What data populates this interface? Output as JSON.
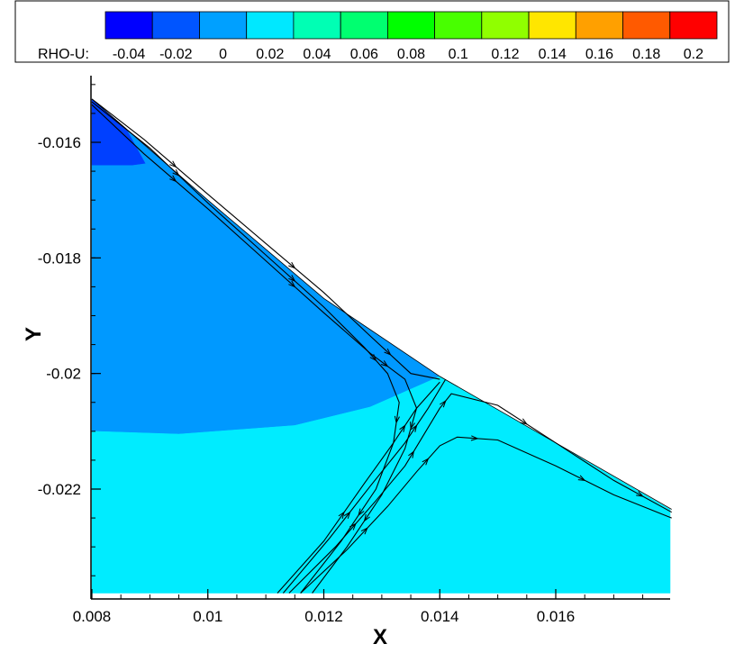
{
  "chart_data": {
    "type": "contour",
    "variable": "RHO-U",
    "xlabel": "X",
    "ylabel": "Y",
    "xlim": [
      0.008,
      0.018
    ],
    "ylim": [
      -0.0238,
      -0.0149
    ],
    "x_ticks": [
      "0.008",
      "0.01",
      "0.012",
      "0.014",
      "0.016"
    ],
    "x_tick_values": [
      0.008,
      0.01,
      0.012,
      0.014,
      0.016
    ],
    "y_ticks": [
      "-0.016",
      "-0.018",
      "-0.02",
      "-0.022"
    ],
    "y_tick_values": [
      -0.016,
      -0.018,
      -0.02,
      -0.022
    ],
    "legend": {
      "label": "RHO-U:",
      "levels": [
        "-0.04",
        "-0.02",
        "0",
        "0.02",
        "0.04",
        "0.06",
        "0.08",
        "0.1",
        "0.12",
        "0.14",
        "0.16",
        "0.18",
        "0.2"
      ],
      "colors": [
        "#0000ff",
        "#0055ff",
        "#00a0ff",
        "#00e8ff",
        "#00ffb4",
        "#00ff70",
        "#00ff00",
        "#48ff00",
        "#90ff00",
        "#ffe600",
        "#ffa000",
        "#ff5a00",
        "#ff0000"
      ]
    },
    "upper_boundary": [
      [
        0.008,
        -0.01525
      ],
      [
        0.01,
        -0.017
      ],
      [
        0.012,
        -0.0187
      ],
      [
        0.014,
        -0.02005
      ],
      [
        0.018,
        -0.02235
      ]
    ],
    "regions": [
      {
        "color": "#0040ff",
        "polygon": [
          [
            0.008,
            -0.01525
          ],
          [
            0.0086,
            -0.01577
          ],
          [
            0.00893,
            -0.01637
          ],
          [
            0.0087,
            -0.0164
          ],
          [
            0.008,
            -0.0164
          ]
        ]
      },
      {
        "color": "#0099ff",
        "polygon": [
          [
            0.0086,
            -0.01577
          ],
          [
            0.01,
            -0.017
          ],
          [
            0.012,
            -0.0187
          ],
          [
            0.014,
            -0.02005
          ],
          [
            0.0128,
            -0.02058
          ],
          [
            0.0115,
            -0.0209
          ],
          [
            0.0095,
            -0.02105
          ],
          [
            0.008,
            -0.021
          ],
          [
            0.008,
            -0.0164
          ],
          [
            0.0087,
            -0.0164
          ],
          [
            0.00893,
            -0.01637
          ]
        ]
      },
      {
        "color": "#00ecff",
        "polygon": [
          [
            0.008,
            -0.021
          ],
          [
            0.0095,
            -0.02105
          ],
          [
            0.0115,
            -0.0209
          ],
          [
            0.0128,
            -0.02058
          ],
          [
            0.014,
            -0.02005
          ],
          [
            0.018,
            -0.02235
          ],
          [
            0.018,
            -0.0238
          ],
          [
            0.008,
            -0.0238
          ]
        ]
      }
    ],
    "streamlines": [
      [
        [
          0.008,
          -0.01525
        ],
        [
          0.0089,
          -0.01595
        ],
        [
          0.01,
          -0.0169
        ],
        [
          0.011,
          -0.01775
        ],
        [
          0.012,
          -0.0186
        ],
        [
          0.0128,
          -0.01935
        ],
        [
          0.0135,
          -0.02
        ],
        [
          0.014,
          -0.0201
        ]
      ],
      [
        [
          0.008,
          -0.0153
        ],
        [
          0.009,
          -0.0161
        ],
        [
          0.01,
          -0.01705
        ],
        [
          0.011,
          -0.01795
        ],
        [
          0.012,
          -0.01885
        ],
        [
          0.0127,
          -0.01955
        ],
        [
          0.0131,
          -0.02
        ],
        [
          0.0133,
          -0.0205
        ],
        [
          0.0132,
          -0.0212
        ],
        [
          0.0129,
          -0.022
        ],
        [
          0.0123,
          -0.0229
        ],
        [
          0.0116,
          -0.0238
        ]
      ],
      [
        [
          0.008,
          -0.01535
        ],
        [
          0.0089,
          -0.0162
        ],
        [
          0.01,
          -0.01715
        ],
        [
          0.011,
          -0.01805
        ],
        [
          0.012,
          -0.01895
        ],
        [
          0.0128,
          -0.01965
        ],
        [
          0.0134,
          -0.0201
        ],
        [
          0.0136,
          -0.0206
        ],
        [
          0.0134,
          -0.0213
        ],
        [
          0.013,
          -0.0221
        ],
        [
          0.0124,
          -0.023
        ],
        [
          0.0118,
          -0.0238
        ]
      ],
      [
        [
          0.0112,
          -0.0238
        ],
        [
          0.012,
          -0.0229
        ],
        [
          0.0127,
          -0.0219
        ],
        [
          0.0132,
          -0.0212
        ],
        [
          0.0136,
          -0.0206
        ],
        [
          0.014,
          -0.02015
        ]
      ],
      [
        [
          0.0113,
          -0.0238
        ],
        [
          0.0121,
          -0.02285
        ],
        [
          0.0128,
          -0.02195
        ],
        [
          0.0134,
          -0.0212
        ],
        [
          0.0138,
          -0.0206
        ],
        [
          0.0141,
          -0.0201
        ]
      ],
      [
        [
          0.0114,
          -0.0238
        ],
        [
          0.0122,
          -0.023
        ],
        [
          0.0129,
          -0.0222
        ],
        [
          0.0134,
          -0.0216
        ],
        [
          0.0137,
          -0.0211
        ],
        [
          0.014,
          -0.0206
        ],
        [
          0.0142,
          -0.02035
        ],
        [
          0.015,
          -0.02055
        ],
        [
          0.016,
          -0.0212
        ],
        [
          0.017,
          -0.02185
        ],
        [
          0.018,
          -0.0224
        ]
      ],
      [
        [
          0.0116,
          -0.0238
        ],
        [
          0.0124,
          -0.02305
        ],
        [
          0.0131,
          -0.0223
        ],
        [
          0.0136,
          -0.0217
        ],
        [
          0.014,
          -0.02125
        ],
        [
          0.0143,
          -0.0211
        ],
        [
          0.015,
          -0.02115
        ],
        [
          0.016,
          -0.0216
        ],
        [
          0.017,
          -0.0221
        ],
        [
          0.018,
          -0.0225
        ]
      ]
    ]
  }
}
